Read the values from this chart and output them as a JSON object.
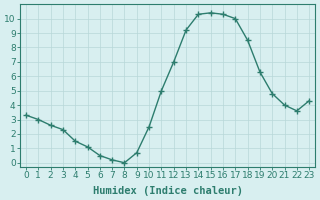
{
  "x": [
    0,
    1,
    2,
    3,
    4,
    5,
    6,
    7,
    8,
    9,
    10,
    11,
    12,
    13,
    14,
    15,
    16,
    17,
    18,
    19,
    20,
    21,
    22,
    23
  ],
  "y": [
    3.3,
    3.0,
    2.6,
    2.3,
    1.5,
    1.1,
    0.5,
    0.2,
    0.0,
    0.7,
    2.5,
    5.0,
    7.0,
    9.2,
    10.3,
    10.4,
    10.3,
    10.0,
    8.5,
    6.3,
    4.8,
    4.0,
    3.6,
    4.3
  ],
  "line_color": "#2d7d6e",
  "marker": "+",
  "marker_size": 4,
  "marker_linewidth": 1.0,
  "bg_color": "#d8eff0",
  "grid_color": "#b8d8d8",
  "xlabel": "Humidex (Indice chaleur)",
  "xlim": [
    -0.5,
    23.5
  ],
  "ylim": [
    -0.3,
    11
  ],
  "yticks": [
    0,
    1,
    2,
    3,
    4,
    5,
    6,
    7,
    8,
    9,
    10
  ],
  "xticks": [
    0,
    1,
    2,
    3,
    4,
    5,
    6,
    7,
    8,
    9,
    10,
    11,
    12,
    13,
    14,
    15,
    16,
    17,
    18,
    19,
    20,
    21,
    22,
    23
  ],
  "axis_color": "#2d7d6e",
  "tick_color": "#2d7d6e",
  "label_fontsize": 7.5,
  "tick_fontsize": 6.5
}
